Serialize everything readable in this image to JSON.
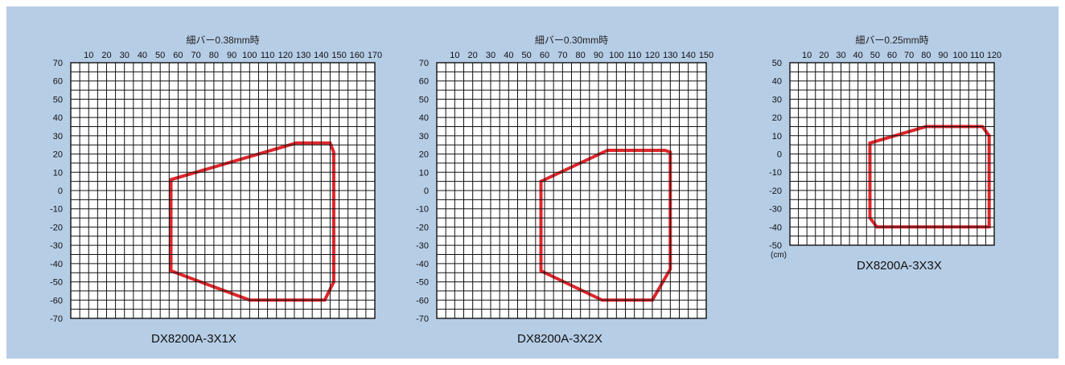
{
  "chart_data": [
    {
      "type": "area",
      "title": "細バー0.38mm時",
      "model": "DX8200A-3X1X",
      "unit": "",
      "xlim": [
        0,
        170
      ],
      "ylim": [
        -70,
        70
      ],
      "x_ticks": [
        10,
        20,
        30,
        40,
        50,
        60,
        70,
        80,
        90,
        100,
        110,
        120,
        130,
        140,
        150,
        160,
        170
      ],
      "y_ticks": [
        70,
        60,
        50,
        40,
        30,
        20,
        10,
        0,
        -10,
        -20,
        -30,
        -40,
        -50,
        -60,
        -70
      ],
      "grid": true,
      "zone": [
        [
          56,
          6
        ],
        [
          56,
          -44
        ],
        [
          100,
          -60
        ],
        [
          142,
          -60
        ],
        [
          147,
          -50
        ],
        [
          147,
          21
        ],
        [
          145,
          26
        ],
        [
          126,
          26
        ]
      ]
    },
    {
      "type": "area",
      "title": "細バー0.30mm時",
      "model": "DX8200A-3X2X",
      "unit": "",
      "xlim": [
        0,
        150
      ],
      "ylim": [
        -70,
        70
      ],
      "x_ticks": [
        10,
        20,
        30,
        40,
        50,
        60,
        70,
        80,
        90,
        100,
        110,
        120,
        130,
        140,
        150
      ],
      "y_ticks": [
        70,
        60,
        50,
        40,
        30,
        20,
        10,
        0,
        -10,
        -20,
        -30,
        -40,
        -50,
        -60,
        -70
      ],
      "grid": true,
      "zone": [
        [
          58,
          5
        ],
        [
          58,
          -44
        ],
        [
          92,
          -60
        ],
        [
          120,
          -60
        ],
        [
          130,
          -43
        ],
        [
          130,
          21
        ],
        [
          127,
          22
        ],
        [
          95,
          22
        ]
      ]
    },
    {
      "type": "area",
      "title": "細バー0.25mm時",
      "model": "DX8200A-3X3X",
      "unit": "(cm)",
      "xlim": [
        0,
        120
      ],
      "ylim": [
        -50,
        50
      ],
      "x_ticks": [
        10,
        20,
        30,
        40,
        50,
        60,
        70,
        80,
        90,
        100,
        110,
        120
      ],
      "y_ticks": [
        50,
        40,
        30,
        20,
        10,
        0,
        -10,
        -20,
        -30,
        -40,
        -50
      ],
      "grid": true,
      "zone": [
        [
          47,
          6
        ],
        [
          47,
          -35
        ],
        [
          51,
          -40
        ],
        [
          117,
          -40
        ],
        [
          117,
          10
        ],
        [
          113,
          15
        ],
        [
          80,
          15
        ]
      ]
    }
  ]
}
